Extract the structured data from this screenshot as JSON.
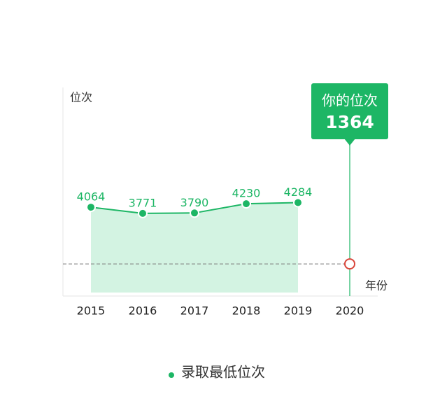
{
  "chart_data": {
    "type": "line",
    "ylabel": "位次",
    "xlabel": "年份",
    "categories": [
      "2015",
      "2016",
      "2017",
      "2018",
      "2019",
      "2020"
    ],
    "series": [
      {
        "name": "录取最低位次",
        "color": "#1db665",
        "area_color": "#d3f3e2",
        "values": [
          4064,
          3771,
          3790,
          4230,
          4284,
          null
        ]
      }
    ],
    "ylim": [
      0,
      10000
    ],
    "annotation": {
      "title": "你的位次",
      "value": 1364,
      "marker_color": "#d9453a"
    },
    "legend": "bottom"
  }
}
